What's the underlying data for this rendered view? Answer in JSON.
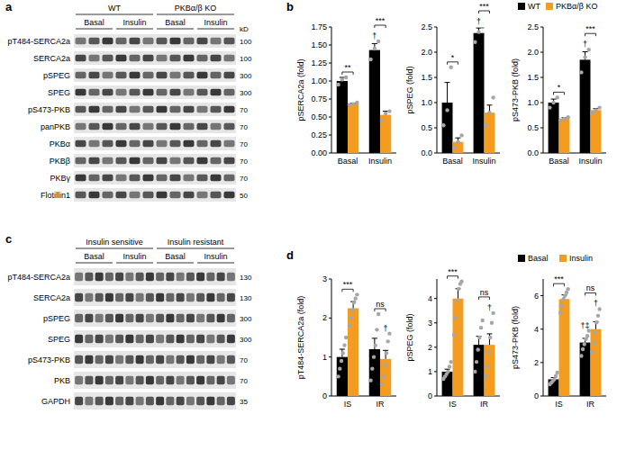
{
  "panel_labels": [
    "a",
    "b",
    "c",
    "d"
  ],
  "blots": [
    {
      "groups": [
        {
          "label": "WT",
          "conditions": [
            "Basal",
            "Insulin"
          ]
        },
        {
          "label": "PKBα/β KO",
          "conditions": [
            "Basal",
            "Insulin"
          ]
        }
      ],
      "lanes_per_condition": 3,
      "unit": "kD",
      "rows": [
        {
          "label": "pT484-SERCA2a",
          "mw": 100
        },
        {
          "label": "SERCA2a",
          "mw": 100
        },
        {
          "label": "pSPEG",
          "mw": 300
        },
        {
          "label": "SPEG",
          "mw": 300
        },
        {
          "label": "pS473-PKB",
          "mw": 70
        },
        {
          "label": "panPKB",
          "mw": 70
        },
        {
          "label": "PKBα",
          "mw": 70
        },
        {
          "label": "PKBβ",
          "mw": 70
        },
        {
          "label": "PKBγ",
          "mw": 70
        },
        {
          "label": "Flotillin1",
          "mw": 50
        }
      ]
    },
    {
      "groups": [
        {
          "label": "Insulin sensitive",
          "conditions": [
            "Basal",
            "Insulin"
          ]
        },
        {
          "label": "Insulin resistant",
          "conditions": [
            "Basal",
            "Insulin"
          ]
        }
      ],
      "lanes_per_condition": 4,
      "rows": [
        {
          "label": "pT484-SERCA2a",
          "mw": 130
        },
        {
          "label": "SERCA2a",
          "mw": 130
        },
        {
          "label": "pSPEG",
          "mw": 300
        },
        {
          "label": "SPEG",
          "mw": 300
        },
        {
          "label": "pS473-PKB",
          "mw": 70
        },
        {
          "label": "PKB",
          "mw": 70
        },
        {
          "label": "GAPDH",
          "mw": 35
        }
      ]
    }
  ],
  "chart_data": [
    {
      "type": "bar",
      "y_label": "pSERCA2a (fold)",
      "categories": [
        "Basal",
        "Insulin"
      ],
      "ylim": [
        0,
        1.75
      ],
      "yticks": [
        {
          "value": 0,
          "label": "0.00"
        },
        {
          "value": 0.25,
          "label": "0.25"
        },
        {
          "value": 0.5,
          "label": "0.50"
        },
        {
          "value": 0.75,
          "label": "0.75"
        },
        {
          "value": 1,
          "label": "1.00"
        },
        {
          "value": 1.25,
          "label": "1.25"
        },
        {
          "value": 1.5,
          "label": "1.50"
        },
        {
          "value": 1.75,
          "label": "1.75"
        }
      ],
      "series": [
        {
          "name": "WT",
          "color": "#000000",
          "values": [
            1.0,
            1.43
          ],
          "errors": [
            0.05,
            0.09
          ],
          "points": [
            [
              0.95,
              1.02,
              1.05
            ],
            [
              1.3,
              1.45,
              1.55
            ]
          ]
        },
        {
          "name": "PKBα/β KO",
          "color": "#f39c1f",
          "values": [
            0.68,
            0.53
          ],
          "errors": [
            0.01,
            0.05
          ],
          "points": [
            [
              0.67,
              0.68,
              0.7
            ],
            [
              0.45,
              0.55,
              0.58
            ]
          ]
        }
      ],
      "annotations": [
        {
          "text": "**",
          "category": "Basal"
        },
        {
          "text": "***",
          "category": "Insulin"
        },
        {
          "text": "†",
          "series": "WT",
          "category": "Insulin"
        }
      ]
    },
    {
      "type": "bar",
      "y_label": "pSPEG (fold)",
      "categories": [
        "Basal",
        "Insulin"
      ],
      "ylim": [
        0,
        2.5
      ],
      "yticks": [
        {
          "value": 0,
          "label": "0.0"
        },
        {
          "value": 0.5,
          "label": "0.5"
        },
        {
          "value": 1,
          "label": "1.0"
        },
        {
          "value": 1.5,
          "label": "1.5"
        },
        {
          "value": 2,
          "label": "2.0"
        },
        {
          "value": 2.5,
          "label": "2.5"
        }
      ],
      "series": [
        {
          "name": "WT",
          "color": "#000000",
          "values": [
            1.0,
            2.38
          ],
          "errors": [
            0.4,
            0.1
          ],
          "points": [
            [
              0.55,
              0.85,
              1.7
            ],
            [
              2.2,
              2.4,
              2.5
            ]
          ]
        },
        {
          "name": "PKBα/β KO",
          "color": "#f39c1f",
          "values": [
            0.22,
            0.8
          ],
          "errors": [
            0.08,
            0.15
          ],
          "points": [
            [
              0.1,
              0.22,
              0.35
            ],
            [
              0.55,
              0.8,
              1.1
            ]
          ]
        }
      ],
      "annotations": [
        {
          "text": "*",
          "category": "Basal"
        },
        {
          "text": "***",
          "category": "Insulin"
        },
        {
          "text": "†",
          "series": "WT",
          "category": "Insulin"
        }
      ]
    },
    {
      "type": "bar",
      "y_label": "pS473-PKB (fold)",
      "categories": [
        "Basal",
        "Insulin"
      ],
      "legend": "top-right",
      "ylim": [
        0,
        2.5
      ],
      "yticks": [
        {
          "value": 0,
          "label": "0.0"
        },
        {
          "value": 0.5,
          "label": "0.5"
        },
        {
          "value": 1,
          "label": "1.0"
        },
        {
          "value": 1.5,
          "label": "1.5"
        },
        {
          "value": 2,
          "label": "2.0"
        },
        {
          "value": 2.5,
          "label": "2.5"
        }
      ],
      "series": [
        {
          "name": "WT",
          "color": "#000000",
          "values": [
            1.0,
            1.85
          ],
          "errors": [
            0.07,
            0.16
          ],
          "points": [
            [
              0.9,
              1.0,
              1.1
            ],
            [
              1.6,
              1.9,
              2.05
            ]
          ]
        },
        {
          "name": "PKBα/β KO",
          "color": "#f39c1f",
          "values": [
            0.68,
            0.85
          ],
          "errors": [
            0.02,
            0.03
          ],
          "points": [
            [
              0.65,
              0.68,
              0.71
            ],
            [
              0.8,
              0.85,
              0.9
            ]
          ]
        }
      ],
      "annotations": [
        {
          "text": "*",
          "category": "Basal"
        },
        {
          "text": "***",
          "category": "Insulin"
        },
        {
          "text": "†",
          "series": "WT",
          "category": "Insulin"
        }
      ]
    },
    {
      "type": "bar",
      "y_label": "pT484-SERCA2a (fold)",
      "categories": [
        "IS",
        "IR"
      ],
      "ylim": [
        0,
        3
      ],
      "yticks": [
        0,
        1,
        2,
        3
      ],
      "series": [
        {
          "name": "Basal",
          "color": "#000000",
          "values": [
            1.0,
            1.2
          ],
          "errors": [
            0.2,
            0.28
          ],
          "points": [
            [
              0.5,
              0.7,
              0.9,
              1.1,
              1.3,
              1.5
            ],
            [
              0.4,
              0.7,
              1.0,
              1.3,
              1.7,
              2.1
            ]
          ]
        },
        {
          "name": "Insulin",
          "color": "#f39c1f",
          "values": [
            2.25,
            0.95
          ],
          "errors": [
            0.17,
            0.22
          ],
          "points": [
            [
              1.8,
              2.0,
              2.2,
              2.4,
              2.5,
              2.6
            ],
            [
              0.3,
              0.5,
              0.8,
              1.1,
              1.4,
              1.6
            ]
          ]
        }
      ],
      "annotations": [
        {
          "text": "***",
          "category": "IS"
        },
        {
          "text": "ns",
          "category": "IR"
        },
        {
          "text": "†",
          "series": "Insulin",
          "category": "IR"
        }
      ]
    },
    {
      "type": "bar",
      "y_label": "pSPEG (fold)",
      "categories": [
        "IS",
        "IR"
      ],
      "ylim": [
        0,
        4.8
      ],
      "yticks": [
        0,
        1,
        2,
        3,
        4
      ],
      "series": [
        {
          "name": "Basal",
          "color": "#000000",
          "values": [
            1.0,
            2.1
          ],
          "errors": [
            0.1,
            0.35
          ],
          "points": [
            [
              0.7,
              0.8,
              0.9,
              1.0,
              1.2,
              1.4
            ],
            [
              1.0,
              1.4,
              1.9,
              2.4,
              2.8,
              3.1
            ]
          ]
        },
        {
          "name": "Insulin",
          "color": "#f39c1f",
          "values": [
            4.0,
            2.1
          ],
          "errors": [
            0.4,
            0.45
          ],
          "points": [
            [
              2.5,
              3.2,
              3.9,
              4.4,
              4.6,
              4.7
            ],
            [
              0.8,
              1.2,
              1.8,
              2.4,
              3.0,
              3.4
            ]
          ]
        }
      ],
      "annotations": [
        {
          "text": "***",
          "category": "IS"
        },
        {
          "text": "ns",
          "category": "IR"
        },
        {
          "text": "†",
          "series": "Insulin",
          "category": "IR"
        }
      ]
    },
    {
      "type": "bar",
      "y_label": "pS473-PKB (fold)",
      "categories": [
        "IS",
        "IR"
      ],
      "legend": "top-right",
      "ylim": [
        0,
        7
      ],
      "yticks": [
        0,
        2,
        4,
        6
      ],
      "series": [
        {
          "name": "Basal",
          "color": "#000000",
          "values": [
            1.0,
            3.2
          ],
          "errors": [
            0.1,
            0.25
          ],
          "points": [
            [
              0.7,
              0.8,
              0.9,
              1.0,
              1.2,
              1.4
            ],
            [
              2.4,
              2.8,
              3.1,
              3.4,
              3.6,
              3.9
            ]
          ]
        },
        {
          "name": "Insulin",
          "color": "#f39c1f",
          "values": [
            5.8,
            4.0
          ],
          "errors": [
            0.25,
            0.45
          ],
          "points": [
            [
              5.0,
              5.4,
              5.8,
              6.0,
              6.2,
              6.4
            ],
            [
              2.6,
              3.2,
              3.8,
              4.4,
              4.8,
              5.2
            ]
          ]
        }
      ],
      "annotations": [
        {
          "text": "***",
          "category": "IS"
        },
        {
          "text": "ns",
          "category": "IR"
        },
        {
          "text": "†‡",
          "series": "Basal",
          "category": "IR"
        },
        {
          "text": "†",
          "series": "Insulin",
          "category": "IR"
        }
      ]
    }
  ]
}
